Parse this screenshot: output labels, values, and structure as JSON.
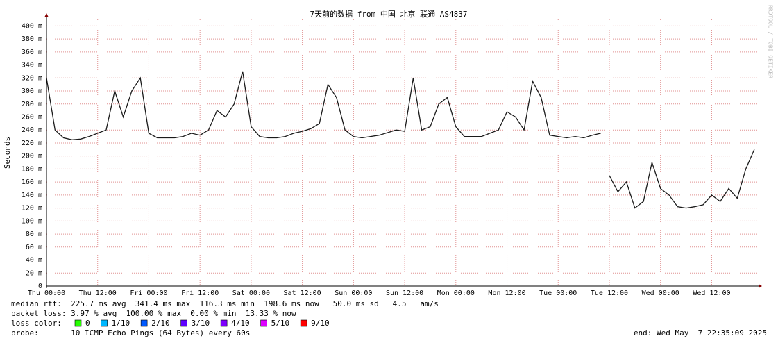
{
  "chart_data": {
    "type": "line",
    "title": "7天前的数据 from 中国 北京 联通 AS4837",
    "ylabel": "Seconds",
    "watermark": "RRDTOOL / TOBI OETIKER",
    "color": "#1a1a1a",
    "grid": true,
    "x": [
      0,
      2,
      4,
      6,
      8,
      10,
      12,
      14,
      16,
      18,
      20,
      22,
      24,
      26,
      28,
      30,
      32,
      34,
      36,
      38,
      40,
      42,
      44,
      46,
      48,
      50,
      52,
      54,
      56,
      58,
      60,
      62,
      64,
      66,
      68,
      70,
      72,
      74,
      76,
      78,
      80,
      82,
      84,
      86,
      88,
      90,
      92,
      94,
      96,
      98,
      100,
      102,
      104,
      106,
      108,
      110,
      112,
      114,
      116,
      118,
      120,
      122,
      124,
      126,
      128,
      130,
      131,
      132,
      134,
      136,
      138,
      140,
      142,
      144,
      146,
      148,
      150,
      152,
      154,
      156,
      158,
      160,
      162,
      164,
      166
    ],
    "values": [
      0.32,
      0.24,
      0.228,
      0.225,
      0.226,
      0.23,
      0.235,
      0.24,
      0.3,
      0.26,
      0.3,
      0.32,
      0.235,
      0.228,
      0.228,
      0.228,
      0.23,
      0.235,
      0.232,
      0.24,
      0.27,
      0.26,
      0.28,
      0.33,
      0.245,
      0.23,
      0.228,
      0.228,
      0.23,
      0.235,
      0.238,
      0.242,
      0.25,
      0.31,
      0.29,
      0.24,
      0.23,
      0.228,
      0.23,
      0.232,
      0.236,
      0.24,
      0.238,
      0.32,
      0.24,
      0.245,
      0.28,
      0.29,
      0.245,
      0.23,
      0.23,
      0.23,
      0.235,
      0.24,
      0.268,
      0.26,
      0.24,
      0.315,
      0.29,
      0.232,
      0.23,
      0.228,
      0.23,
      0.228,
      0.232,
      0.235,
      null,
      0.17,
      0.145,
      0.16,
      0.12,
      0.13,
      0.19,
      0.15,
      0.14,
      0.122,
      0.12,
      0.122,
      0.125,
      0.14,
      0.13,
      0.15,
      0.135,
      0.18,
      0.21
    ],
    "xlim": [
      0,
      167
    ],
    "xticks": [
      {
        "value": 0,
        "label": "Thu 00:00"
      },
      {
        "value": 12,
        "label": "Thu 12:00"
      },
      {
        "value": 24,
        "label": "Fri 00:00"
      },
      {
        "value": 36,
        "label": "Fri 12:00"
      },
      {
        "value": 48,
        "label": "Sat 00:00"
      },
      {
        "value": 60,
        "label": "Sat 12:00"
      },
      {
        "value": 72,
        "label": "Sun 00:00"
      },
      {
        "value": 84,
        "label": "Sun 12:00"
      },
      {
        "value": 96,
        "label": "Mon 00:00"
      },
      {
        "value": 108,
        "label": "Mon 12:00"
      },
      {
        "value": 120,
        "label": "Tue 00:00"
      },
      {
        "value": 132,
        "label": "Tue 12:00"
      },
      {
        "value": 144,
        "label": "Wed 00:00"
      },
      {
        "value": 156,
        "label": "Wed 12:00"
      }
    ],
    "ylim": [
      0,
      0.41
    ],
    "yticks": [
      0,
      {
        "value": 0.02,
        "label": "20 m"
      },
      {
        "value": 0.04,
        "label": "40 m"
      },
      {
        "value": 0.06,
        "label": "60 m"
      },
      {
        "value": 0.08,
        "label": "80 m"
      },
      {
        "value": 0.1,
        "label": "100 m"
      },
      {
        "value": 0.12,
        "label": "120 m"
      },
      {
        "value": 0.14,
        "label": "140 m"
      },
      {
        "value": 0.16,
        "label": "160 m"
      },
      {
        "value": 0.18,
        "label": "180 m"
      },
      {
        "value": 0.2,
        "label": "200 m"
      },
      {
        "value": 0.22,
        "label": "220 m"
      },
      {
        "value": 0.24,
        "label": "240 m"
      },
      {
        "value": 0.26,
        "label": "260 m"
      },
      {
        "value": 0.28,
        "label": "280 m"
      },
      {
        "value": 0.3,
        "label": "300 m"
      },
      {
        "value": 0.32,
        "label": "320 m"
      },
      {
        "value": 0.34,
        "label": "340 m"
      },
      {
        "value": 0.36,
        "label": "360 m"
      },
      {
        "value": 0.38,
        "label": "380 m"
      },
      {
        "value": 0.4,
        "label": "400 m"
      }
    ],
    "stats": [
      "median rtt:  225.7 ms avg  341.4 ms max  116.3 ms min  198.6 ms now   50.0 ms sd   4.5   am/s",
      "packet loss: 3.97 % avg  100.00 % max  0.00 % min  13.33 % now"
    ],
    "loss_legend": {
      "label": "loss color:",
      "items": [
        {
          "label": "0",
          "color": "#26ff00"
        },
        {
          "label": "1/10",
          "color": "#00b8ff"
        },
        {
          "label": "2/10",
          "color": "#0059ff"
        },
        {
          "label": "3/10",
          "color": "#5e00ff"
        },
        {
          "label": "4/10",
          "color": "#7e00ff"
        },
        {
          "label": "5/10",
          "color": "#dd00ff"
        },
        {
          "label": "9/10",
          "color": "#ff0000"
        }
      ]
    },
    "probe": "probe:       10 ICMP Echo Pings (64 Bytes) every 60s",
    "end": "end: Wed May  7 22:35:09 2025"
  }
}
